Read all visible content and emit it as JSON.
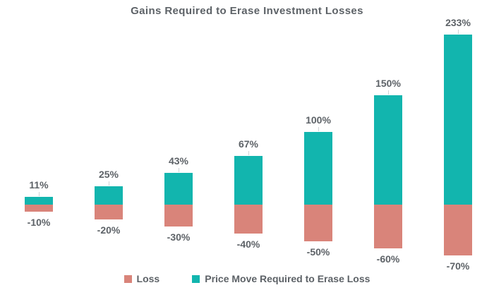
{
  "title": "Gains Required to Erase Investment Losses",
  "colors": {
    "loss": "#d9847a",
    "gain": "#12b5ae",
    "label_text": "#5d6267",
    "leader_line": "#cfd3d6",
    "background": "#ffffff"
  },
  "legend": {
    "items": [
      {
        "label": "Loss",
        "color": "#d9847a"
      },
      {
        "label": "Price Move Required to Erase Loss",
        "color": "#12b5ae"
      }
    ]
  },
  "chart_data": {
    "type": "bar",
    "subtype": "diverging-stacked-vertical",
    "title": "Gains Required to Erase Investment Losses",
    "xlabel": "",
    "ylabel": "",
    "categories": [
      "-10%",
      "-20%",
      "-30%",
      "-40%",
      "-50%",
      "-60%",
      "-70%"
    ],
    "series": [
      {
        "name": "Loss",
        "color": "#d9847a",
        "values": [
          -10,
          -20,
          -30,
          -40,
          -50,
          -60,
          -70
        ],
        "labels": [
          "-10%",
          "-20%",
          "-30%",
          "-40%",
          "-50%",
          "-60%",
          "-70%"
        ],
        "label_position": "below-bar"
      },
      {
        "name": "Price Move Required to Erase Loss",
        "color": "#12b5ae",
        "values": [
          11,
          25,
          43,
          67,
          100,
          150,
          233
        ],
        "labels": [
          "11%",
          "25%",
          "43%",
          "67%",
          "100%",
          "150%",
          "233%"
        ],
        "label_position": "above-bar"
      }
    ],
    "ylim": [
      -80,
      245
    ],
    "baseline": 0,
    "grid": false,
    "axis_visible": false,
    "legend_position": "bottom"
  }
}
